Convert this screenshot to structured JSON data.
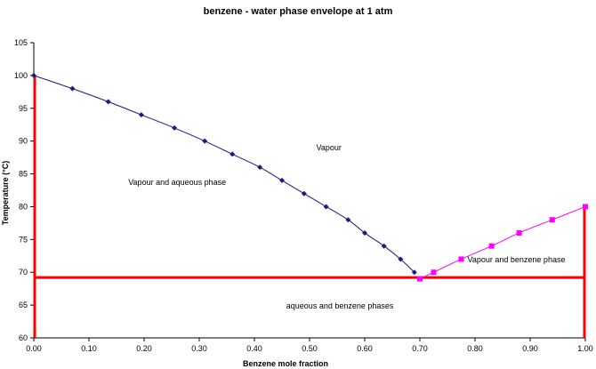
{
  "chart_data": {
    "type": "scatter",
    "title": "benzene - water phase envelope at 1 atm",
    "xlabel": "Benzene mole fraction",
    "ylabel": "Temperature (°C)",
    "xlim": [
      0,
      1
    ],
    "ylim": [
      60,
      105
    ],
    "grid": false,
    "x_ticks": [
      "0.00",
      "0.10",
      "0.20",
      "0.30",
      "0.40",
      "0.50",
      "0.60",
      "0.70",
      "0.80",
      "0.90",
      "1.00"
    ],
    "y_ticks": [
      "60",
      "65",
      "70",
      "75",
      "80",
      "85",
      "90",
      "95",
      "100",
      "105"
    ],
    "series": [
      {
        "color": "#1a1a80",
        "marker": "diamond",
        "x": [
          0.0,
          0.07,
          0.135,
          0.195,
          0.255,
          0.31,
          0.36,
          0.41,
          0.45,
          0.49,
          0.53,
          0.57,
          0.6,
          0.635,
          0.665,
          0.69
        ],
        "y": [
          100,
          98,
          96,
          94,
          92,
          90,
          88,
          86,
          84,
          82,
          80,
          78,
          76,
          74,
          72,
          70
        ]
      },
      {
        "color": "#ff00ff",
        "marker": "square",
        "x": [
          0.7,
          0.725,
          0.775,
          0.83,
          0.88,
          0.94,
          1.0
        ],
        "y": [
          69,
          70,
          72,
          74,
          76,
          78,
          80
        ]
      }
    ],
    "boundary_lines": {
      "color": "#ff0000",
      "three_phase_temperature": 69.2,
      "vertical_x": [
        0.0,
        1.0
      ],
      "left_top": 100,
      "right_top": 80
    },
    "annotations": [
      {
        "text": "Vapour",
        "x": 0.535,
        "y": 88.6
      },
      {
        "text": "Vapour and aqueous phase",
        "x": 0.26,
        "y": 83.3
      },
      {
        "text": "Vapour and benzene phase",
        "x": 0.875,
        "y": 71.5
      },
      {
        "text": "aqueous and benzene phases",
        "x": 0.555,
        "y": 64.5
      }
    ]
  }
}
